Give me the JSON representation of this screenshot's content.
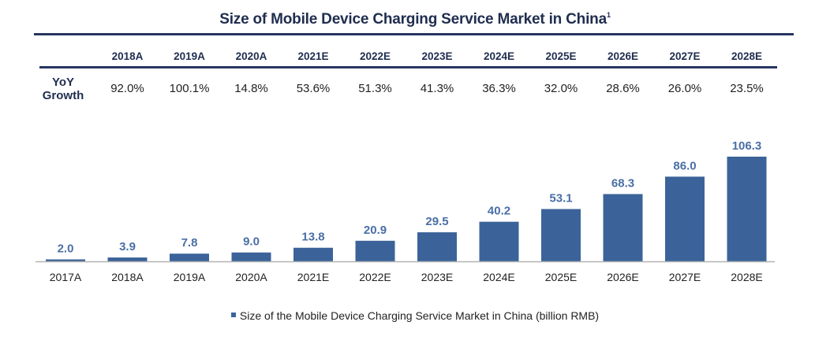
{
  "chart_data": {
    "type": "bar",
    "title": "Size of Mobile Device Charging Service Market in China",
    "title_footnote": "1",
    "categories": [
      "2017A",
      "2018A",
      "2019A",
      "2020A",
      "2021E",
      "2022E",
      "2023E",
      "2024E",
      "2025E",
      "2026E",
      "2027E",
      "2028E"
    ],
    "series": [
      {
        "name": "Size of the Mobile Device Charging Service Market in China (billion RMB)",
        "values": [
          2.0,
          3.9,
          7.8,
          9.0,
          13.8,
          20.9,
          29.5,
          40.2,
          53.1,
          68.3,
          86.0,
          106.3
        ],
        "labels": [
          "2.0",
          "3.9",
          "7.8",
          "9.0",
          "13.8",
          "20.9",
          "29.5",
          "40.2",
          "53.1",
          "68.3",
          "86.0",
          "106.3"
        ],
        "color": "#3b6399"
      }
    ],
    "xlabel": "",
    "ylabel": "",
    "ylim": [
      0,
      106.3
    ],
    "grid": false,
    "legend_position": "bottom",
    "data_label_color": "#4a6fa5",
    "growth_table": {
      "row_label_line1": "YoY",
      "row_label_line2": "Growth",
      "headers": [
        "2018A",
        "2019A",
        "2020A",
        "2021E",
        "2022E",
        "2023E",
        "2024E",
        "2025E",
        "2026E",
        "2027E",
        "2028E"
      ],
      "values": [
        "92.0%",
        "100.1%",
        "14.8%",
        "53.6%",
        "51.3%",
        "41.3%",
        "36.3%",
        "32.0%",
        "28.6%",
        "26.0%",
        "23.5%"
      ]
    }
  },
  "colors": {
    "title": "#1f2d4f",
    "rules": "#27355f",
    "bar": "#3b6399",
    "axis": "#b3b3b3"
  }
}
